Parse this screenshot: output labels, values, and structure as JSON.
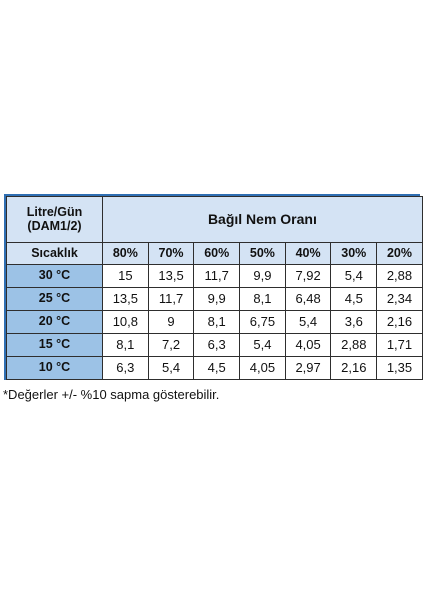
{
  "table": {
    "corner_line1": "Litre/Gün",
    "corner_line2": "(DAM1/2)",
    "group_header": "Bağıl Nem Oranı",
    "row_header_label": "Sıcaklık",
    "humidity_levels": [
      "80%",
      "70%",
      "60%",
      "50%",
      "40%",
      "30%",
      "20%"
    ],
    "rows": [
      {
        "temp": "30 °C",
        "values": [
          "15",
          "13,5",
          "11,7",
          "9,9",
          "7,92",
          "5,4",
          "2,88"
        ]
      },
      {
        "temp": "25 °C",
        "values": [
          "13,5",
          "11,7",
          "9,9",
          "8,1",
          "6,48",
          "4,5",
          "2,34"
        ]
      },
      {
        "temp": "20 °C",
        "values": [
          "10,8",
          "9",
          "8,1",
          "6,75",
          "5,4",
          "3,6",
          "2,16"
        ]
      },
      {
        "temp": "15 °C",
        "values": [
          "8,1",
          "7,2",
          "6,3",
          "5,4",
          "4,05",
          "2,88",
          "1,71"
        ]
      },
      {
        "temp": "10 °C",
        "values": [
          "6,3",
          "5,4",
          "4,5",
          "4,05",
          "2,97",
          "2,16",
          "1,35"
        ]
      }
    ]
  },
  "footnote": "*Değerler +/- %10 sapma gösterebilir."
}
